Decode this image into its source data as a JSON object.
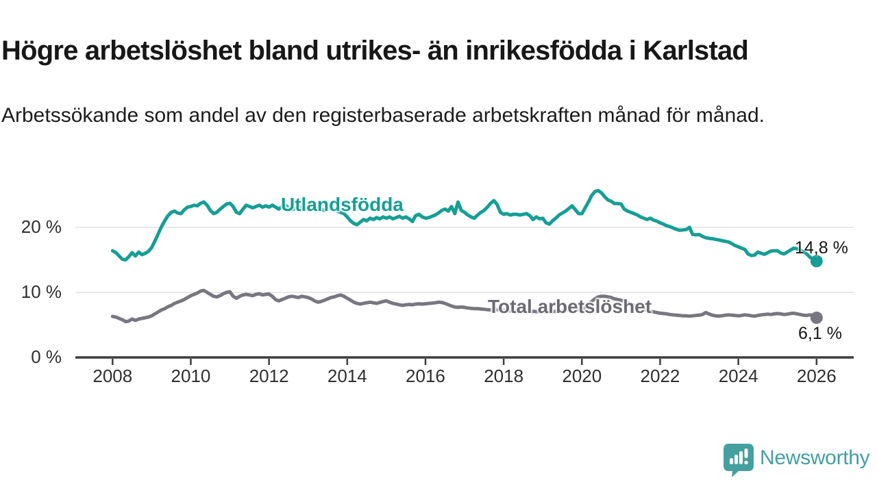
{
  "header": {
    "title": "Högre arbetslöshet bland utrikes- än inrikesfödda i Karlstad",
    "subtitle": "Arbetssökande som andel av den registerbaserade arbetskraften månad för månad."
  },
  "branding": {
    "label": "Newsworthy",
    "color": "#459fa0"
  },
  "chart_data": {
    "type": "line",
    "title": "Högre arbetslöshet bland utrikes- än inrikesfödda i Karlstad",
    "subtitle": "Arbetssökande som andel av den registerbaserade arbetskraften månad för månad.",
    "unit": "%",
    "grid": "horizontal",
    "legend_position": "inline-labels",
    "x_start_year": 2008,
    "x_step": "monthly",
    "x_ticks": [
      2008,
      2010,
      2012,
      2014,
      2016,
      2018,
      2020,
      2022,
      2024,
      2026
    ],
    "y_ticks": [
      {
        "value": 0,
        "label": "0 %"
      },
      {
        "value": 10,
        "label": "10 %"
      },
      {
        "value": 20,
        "label": "20 %"
      }
    ],
    "ylim": [
      0,
      27.5
    ],
    "xlim": [
      2007.05,
      2026.95
    ],
    "axis_color": "#3d3d3d",
    "gridline_color": "#dbdbdb",
    "series": [
      {
        "name": "Utlandsfödda",
        "color": "#169e94",
        "end_label": "14,8 %",
        "end_value": 14.8,
        "values": [
          16.4,
          16.1,
          15.6,
          15.1,
          15.0,
          15.5,
          16.1,
          15.6,
          16.2,
          15.8,
          16.0,
          16.3,
          16.9,
          17.9,
          19.0,
          20.1,
          21.0,
          21.8,
          22.3,
          22.5,
          22.2,
          22.1,
          22.7,
          23.1,
          23.2,
          23.4,
          23.3,
          23.7,
          23.9,
          23.4,
          22.6,
          22.1,
          22.3,
          22.8,
          23.2,
          23.6,
          23.7,
          23.2,
          22.3,
          22.1,
          22.8,
          23.4,
          23.2,
          23.0,
          23.2,
          23.4,
          23.1,
          23.3,
          23.1,
          23.4,
          23.1,
          22.8,
          23.2,
          23.4,
          23.0,
          22.7,
          22.9,
          23.2,
          23.0,
          22.8,
          23.0,
          23.2,
          22.9,
          23.1,
          22.8,
          22.6,
          22.9,
          23.1,
          22.8,
          22.5,
          22.3,
          22.1,
          21.6,
          21.0,
          20.6,
          20.4,
          20.8,
          21.2,
          21.0,
          21.4,
          21.2,
          21.5,
          21.3,
          21.6,
          21.4,
          21.6,
          21.3,
          21.5,
          21.7,
          21.4,
          21.6,
          21.3,
          20.9,
          21.8,
          22.0,
          21.6,
          21.4,
          21.5,
          21.7,
          21.9,
          22.2,
          22.6,
          22.8,
          22.5,
          23.2,
          22.1,
          23.9,
          22.6,
          22.3,
          21.9,
          21.6,
          21.4,
          21.9,
          22.3,
          22.6,
          23.1,
          23.7,
          24.1,
          23.5,
          22.3,
          22.0,
          22.1,
          21.9,
          22.0,
          22.0,
          21.9,
          22.0,
          22.1,
          21.8,
          21.2,
          21.6,
          21.3,
          21.4,
          20.7,
          20.5,
          21.0,
          21.4,
          21.9,
          22.2,
          22.5,
          22.9,
          23.3,
          22.7,
          22.1,
          22.1,
          23.0,
          23.9,
          24.9,
          25.5,
          25.65,
          25.3,
          24.7,
          24.2,
          24.0,
          23.65,
          23.65,
          23.6,
          22.8,
          22.5,
          22.3,
          22.1,
          21.9,
          21.6,
          21.4,
          21.2,
          21.4,
          21.1,
          20.95,
          20.7,
          20.5,
          20.25,
          20.1,
          19.9,
          19.7,
          19.55,
          19.6,
          19.65,
          20.0,
          18.9,
          18.85,
          18.9,
          18.6,
          18.4,
          18.3,
          18.25,
          18.15,
          18.05,
          17.95,
          17.85,
          17.75,
          17.5,
          17.2,
          17.0,
          16.8,
          16.6,
          15.9,
          15.65,
          15.75,
          16.2,
          16.0,
          15.85,
          16.1,
          16.35,
          16.4,
          16.4,
          16.05,
          15.9,
          16.2,
          16.5,
          16.8,
          16.7,
          16.5,
          16.2,
          15.9,
          15.4,
          15.1,
          14.8
        ]
      },
      {
        "name": "Total arbetslöshet",
        "color": "#787680",
        "end_label": "6,1 %",
        "end_value": 6.1,
        "values": [
          6.3,
          6.2,
          6.0,
          5.8,
          5.5,
          5.6,
          5.9,
          5.7,
          5.9,
          6.0,
          6.1,
          6.2,
          6.4,
          6.7,
          7.0,
          7.3,
          7.5,
          7.8,
          8.0,
          8.3,
          8.5,
          8.7,
          8.9,
          9.2,
          9.5,
          9.7,
          9.9,
          10.2,
          10.3,
          10.0,
          9.7,
          9.4,
          9.3,
          9.5,
          9.8,
          10.0,
          10.1,
          9.4,
          9.1,
          9.4,
          9.6,
          9.7,
          9.6,
          9.5,
          9.7,
          9.8,
          9.6,
          9.7,
          9.75,
          9.4,
          8.9,
          8.7,
          8.9,
          9.1,
          9.3,
          9.4,
          9.3,
          9.2,
          9.4,
          9.3,
          9.2,
          9.0,
          8.7,
          8.5,
          8.6,
          8.8,
          9.0,
          9.2,
          9.3,
          9.5,
          9.6,
          9.4,
          9.1,
          8.8,
          8.5,
          8.3,
          8.2,
          8.3,
          8.4,
          8.5,
          8.4,
          8.3,
          8.45,
          8.6,
          8.7,
          8.5,
          8.3,
          8.2,
          8.1,
          8.0,
          8.1,
          8.15,
          8.1,
          8.2,
          8.25,
          8.2,
          8.25,
          8.3,
          8.35,
          8.4,
          8.5,
          8.45,
          8.3,
          8.1,
          7.9,
          7.75,
          7.7,
          7.75,
          7.7,
          7.6,
          7.55,
          7.5,
          7.5,
          7.45,
          7.4,
          7.35,
          7.3,
          7.3,
          7.35,
          7.3,
          7.25,
          7.2,
          7.15,
          7.1,
          7.1,
          7.05,
          7.0,
          7.0,
          7.05,
          7.1,
          7.05,
          7.0,
          7.0,
          6.95,
          7.0,
          7.05,
          7.1,
          7.15,
          7.2,
          7.25,
          7.3,
          7.3,
          7.25,
          7.3,
          7.4,
          7.6,
          8.1,
          8.6,
          9.0,
          9.3,
          9.4,
          9.4,
          9.3,
          9.2,
          9.0,
          8.9,
          8.8,
          8.6,
          8.4,
          8.2,
          8.0,
          7.8,
          7.6,
          7.4,
          7.2,
          7.1,
          7.0,
          6.9,
          6.8,
          6.75,
          6.7,
          6.6,
          6.55,
          6.5,
          6.45,
          6.4,
          6.4,
          6.35,
          6.4,
          6.45,
          6.5,
          6.6,
          6.9,
          6.7,
          6.5,
          6.4,
          6.35,
          6.4,
          6.5,
          6.55,
          6.5,
          6.45,
          6.4,
          6.45,
          6.55,
          6.5,
          6.4,
          6.35,
          6.45,
          6.55,
          6.6,
          6.65,
          6.6,
          6.7,
          6.75,
          6.7,
          6.6,
          6.65,
          6.75,
          6.8,
          6.7,
          6.6,
          6.5,
          6.45,
          6.55,
          6.4,
          6.1
        ]
      }
    ]
  }
}
